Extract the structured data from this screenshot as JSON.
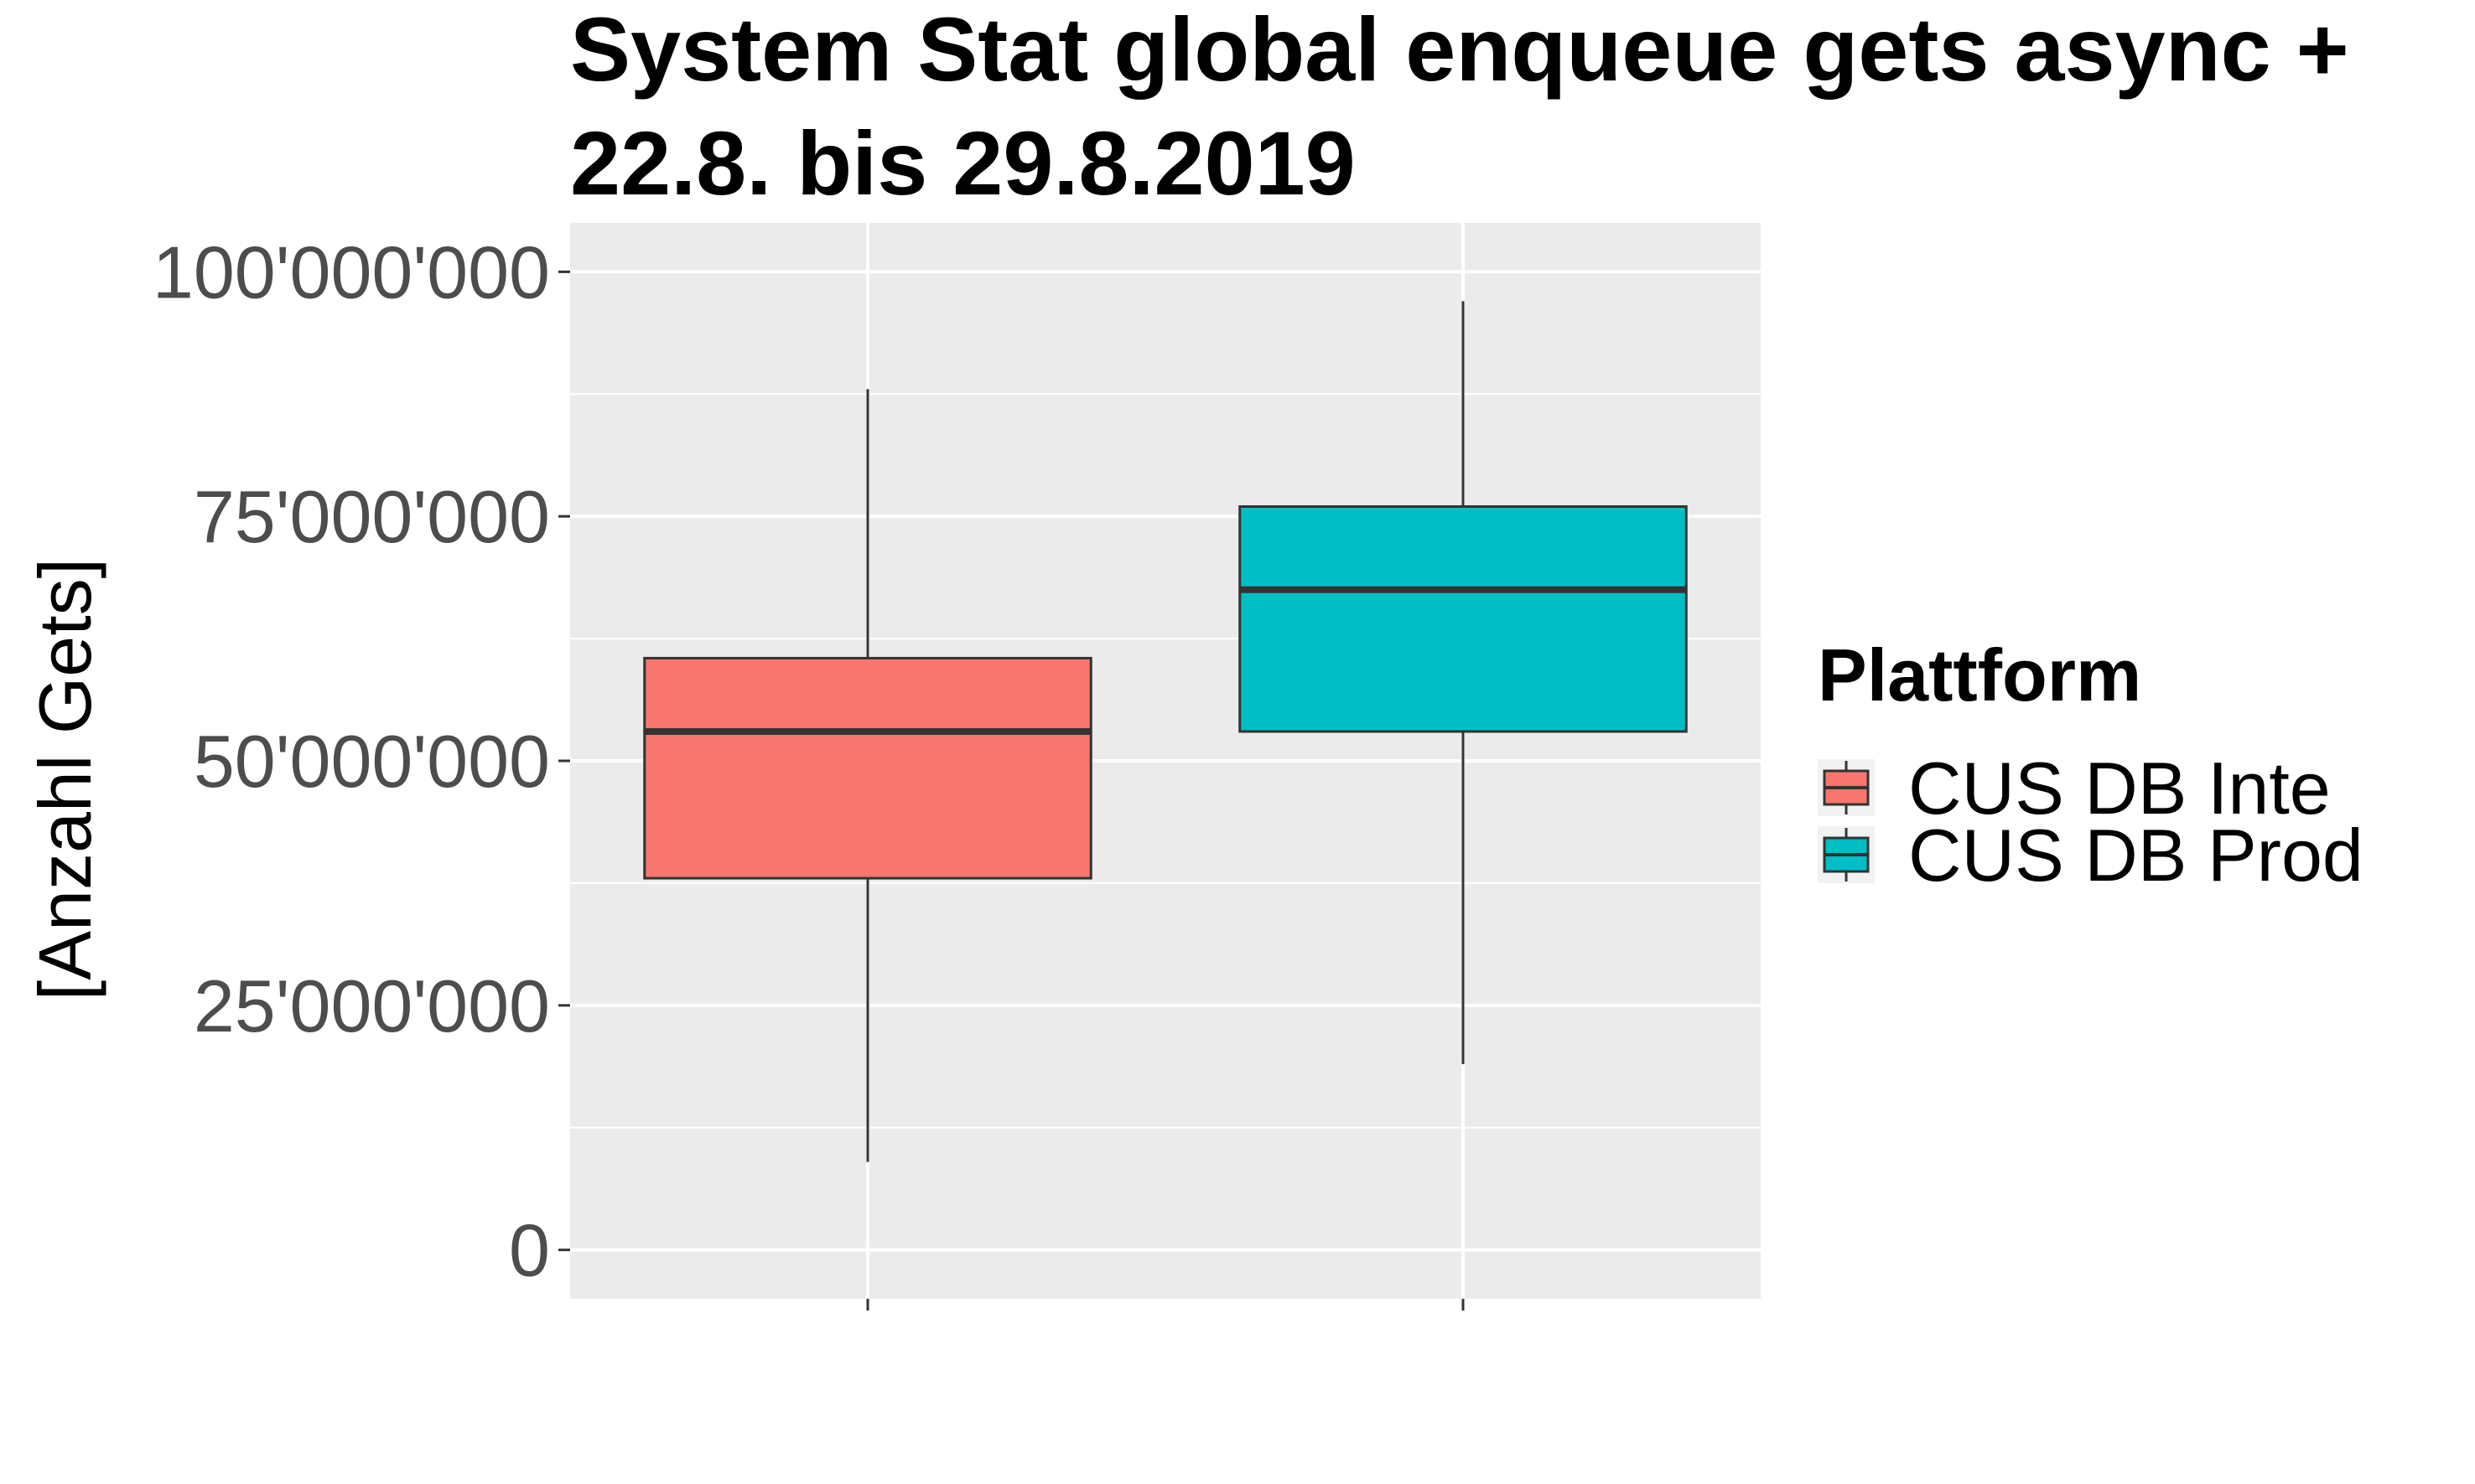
{
  "chart_data": {
    "type": "boxplot",
    "title": "System Stat global enqueue gets async +",
    "subtitle": "22.8. bis 29.8.2019",
    "xlabel": "",
    "ylabel": "[Anzahl Gets]",
    "ylim": [
      -5000000,
      105000000
    ],
    "yticks": [
      0,
      25000000,
      50000000,
      75000000,
      100000000
    ],
    "ytick_labels": [
      "0",
      "25'000'000",
      "50'000'000",
      "75'000'000",
      "100'000'000"
    ],
    "grid": true,
    "legend": {
      "title": "Plattform",
      "placement": "right",
      "entries": [
        {
          "label": "CUS DB Inte",
          "color": "#F8766D"
        },
        {
          "label": "CUS DB Prod",
          "color": "#00BFC4"
        }
      ]
    },
    "series": [
      {
        "name": "CUS DB Inte",
        "color": "#F8766D",
        "whisker_low": 9000000,
        "q1": 38000000,
        "median": 53000000,
        "q3": 60500000,
        "whisker_high": 88000000
      },
      {
        "name": "CUS DB Prod",
        "color": "#00BFC4",
        "whisker_low": 19000000,
        "q1": 53000000,
        "median": 67500000,
        "q3": 76000000,
        "whisker_high": 97000000
      }
    ]
  }
}
